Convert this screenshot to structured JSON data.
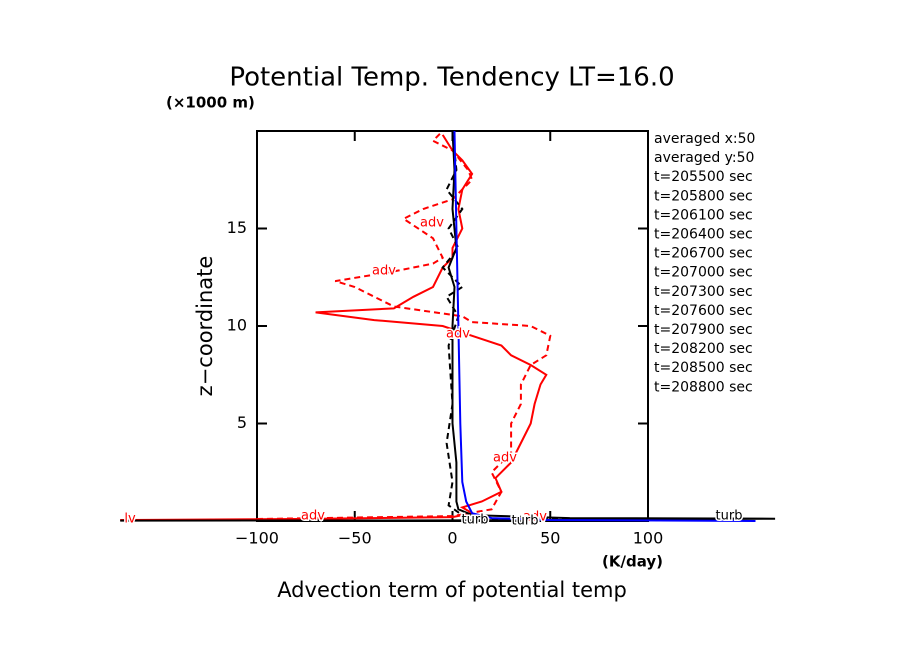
{
  "chart_data": {
    "type": "line",
    "title": "Potential Temp. Tendency LT=16.0",
    "y_unit": "(×1000 m)",
    "x_unit": "(K/day)",
    "xlabel": "Advection term of potential temp",
    "ylabel": "z−coordinate",
    "xlim": [
      -100,
      100
    ],
    "ylim": [
      0,
      20
    ],
    "xticks": [
      {
        "value": -100,
        "label": "−100"
      },
      {
        "value": -50,
        "label": "−50"
      },
      0,
      50,
      100
    ],
    "yticks": [
      5,
      10,
      15
    ],
    "info": [
      "averaged  x:50",
      "averaged  y:50",
      "t=205500 sec",
      "t=205800 sec",
      "t=206100 sec",
      "t=206400 sec",
      "t=206700 sec",
      "t=207000 sec",
      "t=207300 sec",
      "t=207600 sec",
      "t=207900 sec",
      "t=208200 sec",
      "t=208500 sec",
      "t=208800 sec"
    ],
    "annotations": [
      "adv",
      "adv",
      "adv",
      "adv",
      "adv",
      "adv",
      "turb",
      "turb",
      "turb",
      "lv"
    ],
    "series": [
      {
        "color": "#ff0000",
        "dash": false,
        "x": [
          -170,
          -80,
          0,
          10,
          5,
          15,
          25,
          22,
          30,
          35,
          40,
          42,
          45,
          48,
          40,
          30,
          25,
          10,
          -5,
          -40,
          -70,
          -30,
          -20,
          -10,
          -5,
          0,
          0,
          5,
          3,
          5,
          10,
          5,
          0,
          -5
        ],
        "z": [
          0.05,
          0.1,
          0.2,
          0.4,
          0.7,
          1.0,
          1.5,
          2.2,
          3,
          4,
          5,
          6,
          7,
          7.5,
          8,
          8.5,
          9,
          9.5,
          10,
          10.3,
          10.7,
          10.9,
          11.5,
          12,
          13,
          13.5,
          14,
          15,
          16,
          17,
          17.8,
          18.5,
          19,
          19.8
        ]
      },
      {
        "color": "#ff0000",
        "dash": true,
        "x": [
          -100,
          0,
          20,
          25,
          20,
          30,
          30,
          35,
          35,
          40,
          48,
          50,
          40,
          10,
          5,
          -30,
          -40,
          -50,
          -60,
          -30,
          -10,
          -5,
          -10,
          -25,
          -15,
          0,
          5,
          10,
          8,
          0,
          -10,
          -5
        ],
        "z": [
          0.1,
          0.25,
          0.6,
          1.5,
          2.5,
          3.5,
          5,
          6,
          7,
          8,
          8.5,
          9.5,
          10,
          10.2,
          10.5,
          11,
          11.5,
          12,
          12.3,
          12.8,
          13.2,
          13.5,
          14.5,
          15.5,
          16,
          16.5,
          17,
          17.5,
          18,
          19,
          19.5,
          20
        ]
      },
      {
        "color": "#000000",
        "dash": false,
        "x": [
          -170,
          0,
          165,
          60,
          10,
          3,
          2,
          2,
          0,
          0,
          0,
          1,
          -2,
          2,
          0,
          1,
          0
        ],
        "z": [
          0.02,
          0.03,
          0.12,
          0.15,
          0.3,
          0.6,
          1,
          3,
          5,
          8,
          10,
          12,
          13,
          14,
          16,
          18,
          20
        ]
      },
      {
        "color": "#000000",
        "dash": true,
        "x": [
          100,
          20,
          5,
          -2,
          0,
          -3,
          0,
          -2,
          3,
          -3,
          5,
          -5,
          3,
          -2,
          5,
          -3,
          2,
          0
        ],
        "z": [
          0.05,
          0.1,
          0.3,
          0.8,
          2,
          4,
          6,
          9,
          10.5,
          11.5,
          12,
          13,
          14,
          15,
          16,
          17,
          18,
          20
        ]
      },
      {
        "color": "#0000ff",
        "dash": false,
        "x": [
          155,
          50,
          20,
          10,
          7,
          5,
          4,
          3,
          2,
          1
        ],
        "z": [
          0,
          0.05,
          0.15,
          0.4,
          1,
          2,
          5,
          10,
          15,
          20
        ]
      }
    ]
  }
}
